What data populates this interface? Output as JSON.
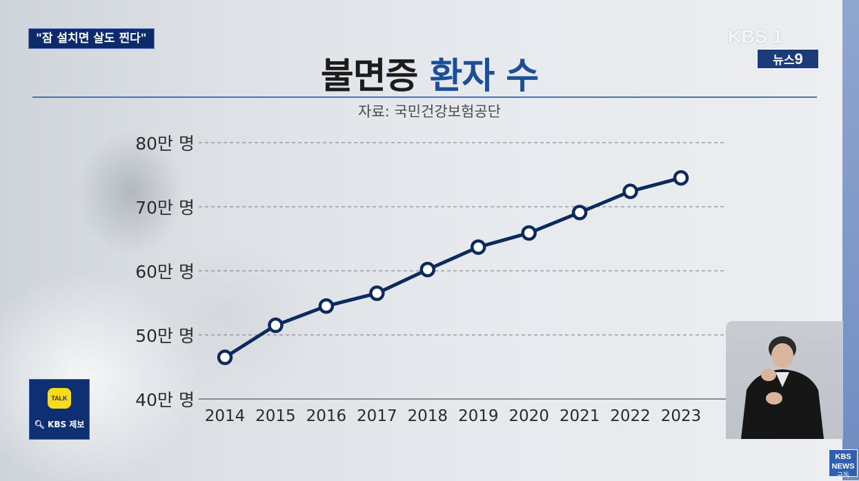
{
  "headline": "\"잠 설치면 살도 찐다\"",
  "broadcaster": {
    "logo": "KBS 1",
    "program_prefix": "뉴스",
    "program_number": "9"
  },
  "title": {
    "main": "불면증",
    "accent": "환자 수"
  },
  "source": "자료: 국민건강보험공단",
  "kakao": {
    "bubble": "TALK",
    "label": "KBS 제보"
  },
  "subscribe": {
    "logo": "KBS NEWS",
    "label": "구독"
  },
  "colors": {
    "line": "#0d2a5c",
    "title_accent": "#1c4f96",
    "headline_bg": "#0d2a6b"
  },
  "chart_data": {
    "type": "line",
    "title": "불면증 환자 수",
    "subtitle": "자료: 국민건강보험공단",
    "x": [
      "2014",
      "2015",
      "2016",
      "2017",
      "2018",
      "2019",
      "2020",
      "2021",
      "2022",
      "2023"
    ],
    "series": [
      {
        "name": "",
        "values": [
          46.5,
          51.5,
          54.5,
          56.5,
          60.2,
          63.7,
          65.9,
          69.1,
          72.4,
          74.5
        ]
      }
    ],
    "y_ticks": [
      40,
      50,
      60,
      70,
      80
    ],
    "y_tick_labels": [
      "40만 명",
      "50만 명",
      "60만 명",
      "70만 명",
      "80만 명"
    ],
    "ylim": [
      40,
      80
    ],
    "unit": "만 명",
    "grid": "dashed horizontal",
    "legend": "none"
  }
}
